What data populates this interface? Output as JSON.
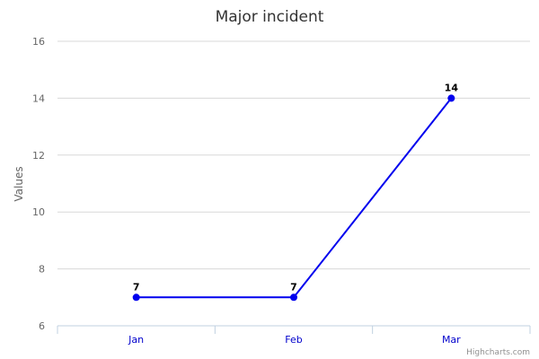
{
  "chart_data": {
    "type": "line",
    "title": "Major incident",
    "ylabel": "Values",
    "xlabel": "",
    "categories": [
      "Jan",
      "Feb",
      "Mar"
    ],
    "series": [
      {
        "values": [
          7,
          7,
          14
        ]
      }
    ],
    "ylim": [
      6,
      16
    ],
    "yticks": [
      6,
      8,
      10,
      12,
      14,
      16
    ],
    "grid": true,
    "data_labels": true,
    "series_color": "#0000ee",
    "credits": "Highcharts.com"
  }
}
